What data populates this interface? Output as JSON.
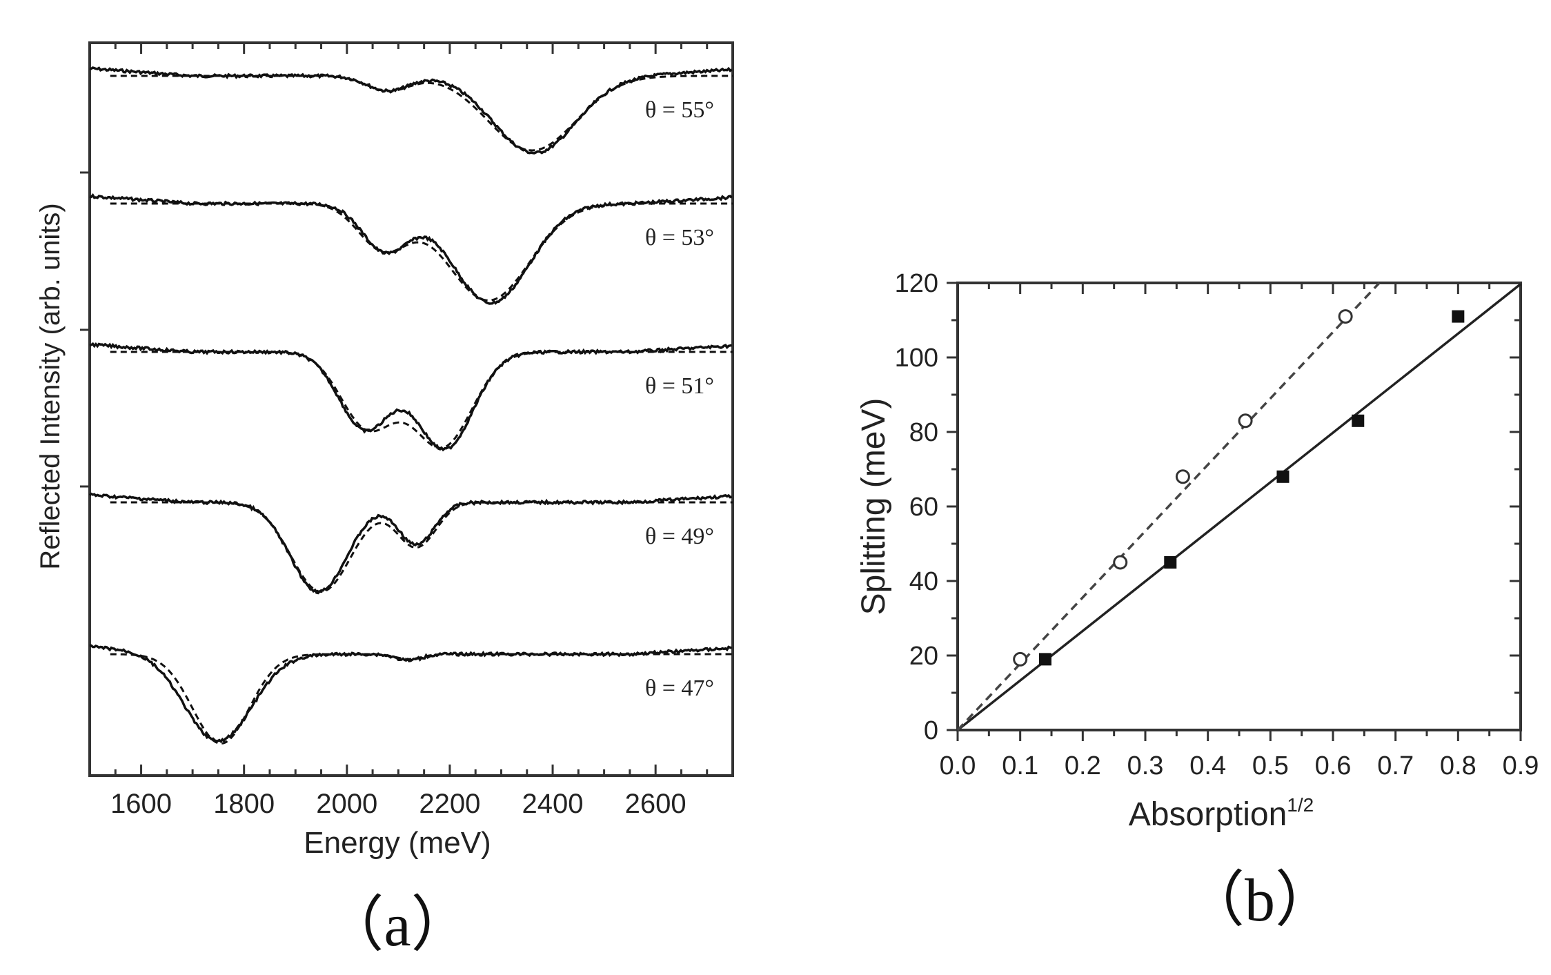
{
  "chart_data": [
    {
      "type": "line",
      "panel_label": "（a）",
      "xlabel": "Energy (meV)",
      "ylabel": "Reflected Intensity (arb. units)",
      "xlim": [
        1500,
        2750
      ],
      "xticks": [
        1600,
        1800,
        2000,
        2200,
        2400,
        2600
      ],
      "xtick_labels": [
        "1600",
        "1800",
        "2000",
        "2200",
        "2400",
        "2600"
      ],
      "series": [
        {
          "name": "θ = 55°",
          "offset": 4,
          "dips": [
            {
              "energy": 2080,
              "depth": 0.12,
              "width": 40
            },
            {
              "energy": 2365,
              "depth": 0.62,
              "width": 80
            }
          ],
          "fit_dips": [
            {
              "energy": 2080,
              "depth": 0.12,
              "width": 42
            },
            {
              "energy": 2360,
              "depth": 0.6,
              "width": 85
            }
          ]
        },
        {
          "name": "θ = 53°",
          "offset": 3,
          "dips": [
            {
              "energy": 2075,
              "depth": 0.38,
              "width": 45
            },
            {
              "energy": 2280,
              "depth": 0.8,
              "width": 75
            }
          ],
          "fit_dips": [
            {
              "energy": 2070,
              "depth": 0.36,
              "width": 48
            },
            {
              "energy": 2275,
              "depth": 0.78,
              "width": 80
            }
          ]
        },
        {
          "name": "θ = 51°",
          "offset": 2,
          "dips": [
            {
              "energy": 2035,
              "depth": 0.62,
              "width": 50
            },
            {
              "energy": 2190,
              "depth": 0.78,
              "width": 55
            }
          ],
          "fit_dips": [
            {
              "energy": 2040,
              "depth": 0.6,
              "width": 52
            },
            {
              "energy": 2185,
              "depth": 0.76,
              "width": 58
            }
          ]
        },
        {
          "name": "θ = 49°",
          "offset": 1,
          "dips": [
            {
              "energy": 1945,
              "depth": 0.72,
              "width": 55
            },
            {
              "energy": 2135,
              "depth": 0.34,
              "width": 35
            }
          ],
          "fit_dips": [
            {
              "energy": 1950,
              "depth": 0.72,
              "width": 58
            },
            {
              "energy": 2135,
              "depth": 0.36,
              "width": 38
            }
          ]
        },
        {
          "name": "θ = 47°",
          "offset": 0,
          "dips": [
            {
              "energy": 1750,
              "depth": 0.7,
              "width": 65
            },
            {
              "energy": 2120,
              "depth": 0.05,
              "width": 25
            }
          ],
          "fit_dips": [
            {
              "energy": 1755,
              "depth": 0.72,
              "width": 55
            },
            {
              "energy": 2120,
              "depth": 0.04,
              "width": 25
            }
          ]
        }
      ]
    },
    {
      "type": "scatter",
      "panel_label": "（b）",
      "xlabel": "Absorption",
      "xlabel_superscript": "1/2",
      "ylabel": "Splitting (meV)",
      "xlim": [
        0.0,
        0.9
      ],
      "ylim": [
        0,
        120
      ],
      "xticks": [
        0.0,
        0.1,
        0.2,
        0.3,
        0.4,
        0.5,
        0.6,
        0.7,
        0.8,
        0.9
      ],
      "xtick_labels": [
        "0.0",
        "0.1",
        "0.2",
        "0.3",
        "0.4",
        "0.5",
        "0.6",
        "0.7",
        "0.8",
        "0.9"
      ],
      "yticks": [
        0,
        20,
        40,
        60,
        80,
        100,
        120
      ],
      "ytick_labels": [
        "0",
        "20",
        "40",
        "60",
        "80",
        "100",
        "120"
      ],
      "series": [
        {
          "marker": "filled-square",
          "line": "solid",
          "fit_slope": 133,
          "points": [
            [
              0.0,
              0
            ],
            [
              0.14,
              19
            ],
            [
              0.34,
              45
            ],
            [
              0.52,
              68
            ],
            [
              0.64,
              83
            ],
            [
              0.8,
              111
            ]
          ]
        },
        {
          "marker": "open-circle",
          "line": "dashed",
          "fit_slope": 178,
          "points": [
            [
              0.0,
              0
            ],
            [
              0.1,
              19
            ],
            [
              0.26,
              45
            ],
            [
              0.36,
              68
            ],
            [
              0.46,
              83
            ],
            [
              0.62,
              111
            ]
          ]
        }
      ]
    }
  ]
}
